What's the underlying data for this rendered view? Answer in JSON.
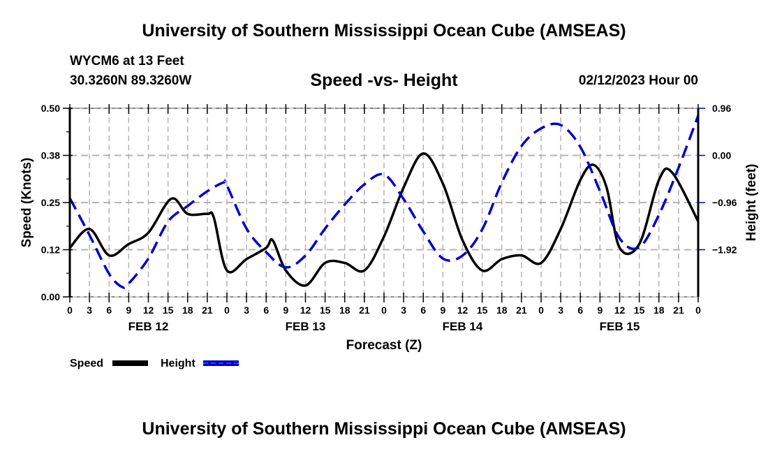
{
  "header": {
    "title": "University of Southern Mississippi Ocean Cube (AMSEAS)",
    "station": "WYCM6 at 13 Feet",
    "coords": "30.3260N  89.3260W",
    "subtitle": "Speed -vs- Height",
    "datetime": "02/12/2023 Hour 00"
  },
  "footer": {
    "title": "University of Southern Mississippi Ocean Cube (AMSEAS)"
  },
  "chart_data": {
    "type": "line",
    "title": "Speed -vs- Height",
    "xlabel": "Forecast (Z)",
    "ylabel": "Speed (Knots)",
    "y2label": "Height (feet)",
    "xlim": [
      0,
      96
    ],
    "ylim": [
      0.0,
      0.5
    ],
    "y2lim": [
      -2.88,
      0.96
    ],
    "grid": true,
    "legend_placement": "bottom-left",
    "x_tick_labels": [
      "0",
      "3",
      "6",
      "9",
      "12",
      "15",
      "18",
      "21",
      "0",
      "3",
      "6",
      "9",
      "12",
      "15",
      "18",
      "21",
      "0",
      "3",
      "6",
      "9",
      "12",
      "15",
      "18",
      "21",
      "0",
      "3",
      "6",
      "9",
      "12",
      "15",
      "18",
      "21",
      "0"
    ],
    "date_labels": [
      {
        "label": "FEB 12",
        "center_hour": 12
      },
      {
        "label": "FEB 13",
        "center_hour": 36
      },
      {
        "label": "FEB 14",
        "center_hour": 60
      },
      {
        "label": "FEB 15",
        "center_hour": 84
      }
    ],
    "y_ticks": [
      {
        "value": 0.0,
        "label": "0.00"
      },
      {
        "value": 0.125,
        "label": "0.12"
      },
      {
        "value": 0.25,
        "label": "0.25"
      },
      {
        "value": 0.375,
        "label": "0.38"
      },
      {
        "value": 0.5,
        "label": "0.50"
      }
    ],
    "y2_ticks": [
      {
        "value": -1.92,
        "label": "−1.92"
      },
      {
        "value": -0.96,
        "label": "−0.96"
      },
      {
        "value": 0.0,
        "label": "0.00"
      },
      {
        "value": 0.96,
        "label": "0.96"
      }
    ],
    "series": [
      {
        "name": "Speed",
        "axis": "left",
        "color": "#000000",
        "style": "solid",
        "x": [
          0,
          3,
          6,
          9,
          12,
          15.5,
          18,
          21,
          22,
          24,
          27,
          30,
          31,
          33,
          36,
          39,
          42,
          45,
          48,
          51,
          54,
          57,
          60,
          63,
          66,
          69,
          72,
          75,
          78,
          80,
          82,
          84,
          87,
          90,
          92,
          96
        ],
        "values": [
          0.13,
          0.18,
          0.11,
          0.14,
          0.17,
          0.26,
          0.22,
          0.22,
          0.21,
          0.07,
          0.1,
          0.13,
          0.15,
          0.07,
          0.03,
          0.09,
          0.09,
          0.07,
          0.16,
          0.29,
          0.38,
          0.3,
          0.15,
          0.07,
          0.1,
          0.11,
          0.09,
          0.18,
          0.31,
          0.35,
          0.29,
          0.13,
          0.14,
          0.31,
          0.33,
          0.2
        ]
      },
      {
        "name": "Height",
        "axis": "right",
        "color": "#0000cc",
        "style": "dashed",
        "x": [
          0,
          3,
          6,
          8,
          9,
          12,
          15,
          18,
          21,
          23.5,
          24,
          27,
          30,
          33,
          36,
          39,
          42,
          45,
          48,
          51,
          54,
          57,
          60,
          63,
          66,
          69,
          72,
          75,
          78,
          81,
          84,
          87,
          90,
          93,
          96
        ],
        "values": [
          -0.87,
          -1.62,
          -2.41,
          -2.68,
          -2.61,
          -2.1,
          -1.35,
          -1.03,
          -0.73,
          -0.55,
          -0.61,
          -1.49,
          -1.97,
          -2.28,
          -2.04,
          -1.49,
          -1.0,
          -0.59,
          -0.39,
          -0.89,
          -1.55,
          -2.1,
          -2.04,
          -1.51,
          -0.55,
          0.19,
          0.55,
          0.62,
          0.17,
          -0.73,
          -1.69,
          -1.87,
          -1.21,
          -0.25,
          0.81
        ]
      }
    ]
  }
}
